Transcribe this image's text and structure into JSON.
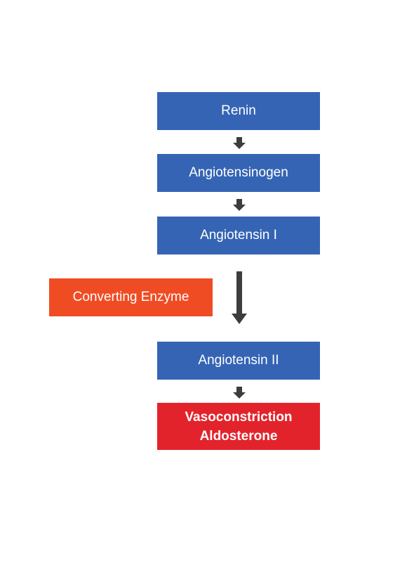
{
  "steps": {
    "renin": "Renin",
    "angiotensinogen": "Angiotensinogen",
    "angiotensin_1": "Angiotensin I",
    "angiotensin_2": "Angiotensin II",
    "outcome_line1": "Vasoconstriction",
    "outcome_line2": "Aldosterone"
  },
  "side_label": {
    "converting_enzyme": "Converting Enzyme"
  },
  "colors": {
    "step_blue": "#3564b4",
    "enzyme_orange": "#f04c24",
    "outcome_red": "#e3232b",
    "arrow_gray": "#3d3d3d"
  }
}
